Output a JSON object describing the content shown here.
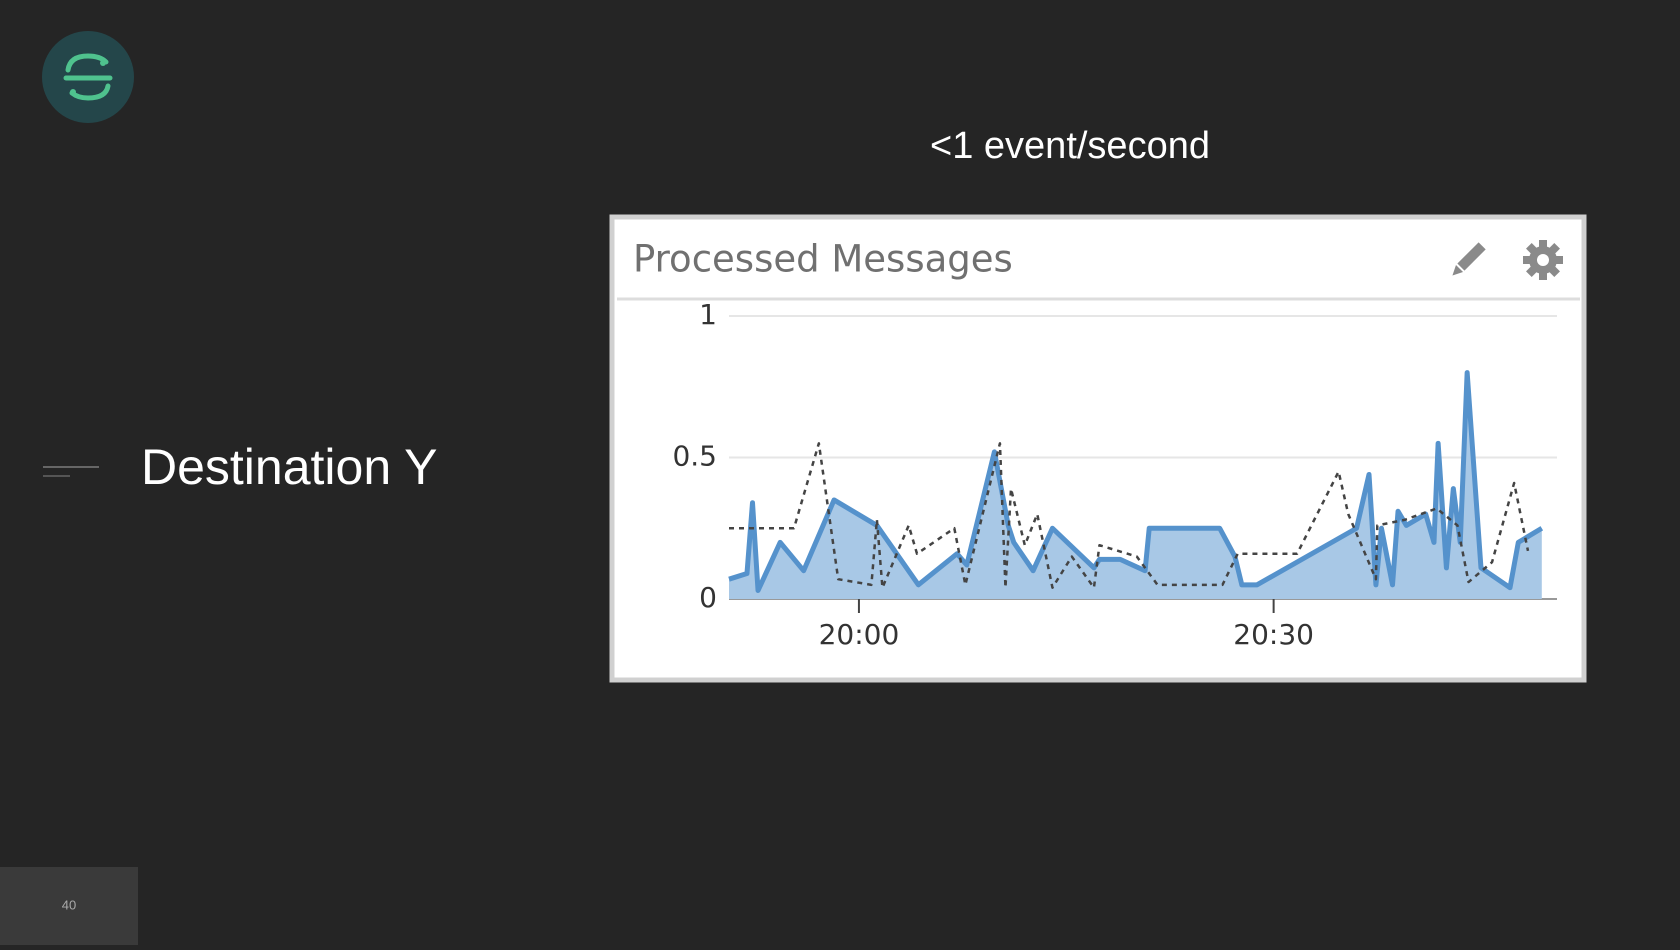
{
  "slide": {
    "title": "Destination Y",
    "subtitle": "<1 event/second",
    "page_number": "40"
  },
  "chart_data": {
    "type": "area",
    "title": "Processed Messages",
    "xlim": [
      1190.6,
      1250.5
    ],
    "ylim": [
      0,
      1
    ],
    "yticks": [
      0,
      0.5,
      1
    ],
    "xticks": [
      {
        "value": 1200,
        "label": "20:00"
      },
      {
        "value": 1230,
        "label": "20:30"
      }
    ],
    "grid": true,
    "series": [
      {
        "type": "area",
        "color": "#5592cc",
        "fill": "#a8c8e6",
        "style": "solid",
        "x": [
          1190.6,
          1191.9,
          1192.3,
          1192.7,
          1194.3,
          1196.0,
          1198.2,
          1201.3,
          1204.3,
          1207.1,
          1207.8,
          1209.8,
          1210.8,
          1211.2,
          1212.6,
          1214.0,
          1217.0,
          1217.4,
          1218.9,
          1220.7,
          1221.0,
          1226.1,
          1227.2,
          1227.7,
          1228.8,
          1236.0,
          1236.9,
          1237.4,
          1237.8,
          1238.6,
          1239.0,
          1239.6,
          1241.0,
          1241.6,
          1241.9,
          1242.5,
          1243.0,
          1243.5,
          1244.0,
          1245.0,
          1247.1,
          1247.7,
          1249.4
        ],
        "values": [
          0.07,
          0.09,
          0.34,
          0.03,
          0.2,
          0.1,
          0.35,
          0.26,
          0.05,
          0.16,
          0.12,
          0.52,
          0.26,
          0.2,
          0.1,
          0.25,
          0.11,
          0.14,
          0.14,
          0.1,
          0.25,
          0.25,
          0.15,
          0.05,
          0.05,
          0.25,
          0.44,
          0.05,
          0.25,
          0.05,
          0.31,
          0.26,
          0.3,
          0.2,
          0.55,
          0.11,
          0.39,
          0.2,
          0.8,
          0.11,
          0.04,
          0.2,
          0.25
        ]
      },
      {
        "type": "line",
        "color": "#444444",
        "style": "dashed",
        "x": [
          1190.6,
          1195.3,
          1197.1,
          1198.5,
          1200.9,
          1201.3,
          1201.7,
          1203.6,
          1204.2,
          1206.9,
          1207.7,
          1210.2,
          1210.6,
          1211.0,
          1212.0,
          1212.9,
          1214.0,
          1215.4,
          1217.0,
          1217.4,
          1220.1,
          1221.6,
          1226.3,
          1227.4,
          1231.7,
          1234.7,
          1235.4,
          1237.4,
          1237.5,
          1239.5,
          1241.8,
          1243.3,
          1244.1,
          1245.8,
          1247.4,
          1248.4
        ],
        "values": [
          0.25,
          0.25,
          0.55,
          0.07,
          0.05,
          0.28,
          0.04,
          0.26,
          0.16,
          0.25,
          0.05,
          0.55,
          0.04,
          0.39,
          0.19,
          0.3,
          0.04,
          0.15,
          0.04,
          0.19,
          0.15,
          0.05,
          0.05,
          0.16,
          0.16,
          0.45,
          0.3,
          0.07,
          0.26,
          0.28,
          0.32,
          0.26,
          0.06,
          0.13,
          0.41,
          0.17
        ]
      }
    ]
  }
}
